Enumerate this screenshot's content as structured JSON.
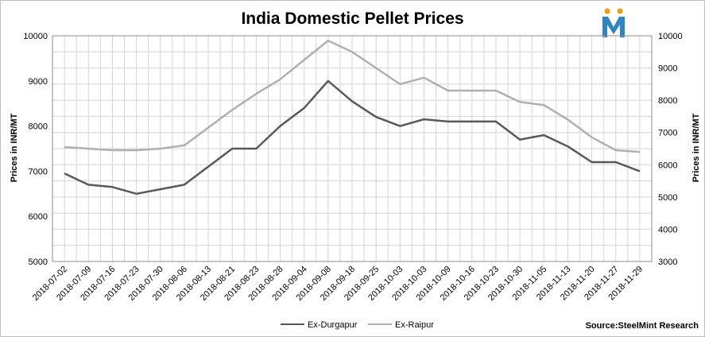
{
  "chart_data": {
    "type": "line",
    "title": "India Domestic Pellet Prices",
    "ylabel_left": "Prices in INR/MT",
    "ylabel_right": "Prices in INR/MT",
    "ylim_left": [
      5000,
      10000
    ],
    "ylim_right": [
      3000,
      10000
    ],
    "yticks_left": [
      5000,
      6000,
      7000,
      8000,
      9000,
      10000
    ],
    "yticks_right": [
      3000,
      4000,
      5000,
      6000,
      7000,
      8000,
      9000,
      10000
    ],
    "grid": true,
    "legend_position": "bottom",
    "categories": [
      "2018-07-02",
      "2018-07-09",
      "2018-07-16",
      "2018-07-23",
      "2018-07-30",
      "2018-08-06",
      "2018-08-13",
      "2018-08-21",
      "2018-08-23",
      "2018-08-28",
      "2018-09-04",
      "2018-09-08",
      "2018-09-18",
      "2018-09-25",
      "2018-10-03",
      "2018-10-03",
      "2018-10-09",
      "2018-10-16",
      "2018-10-23",
      "2018-10-30",
      "2018-11-05",
      "2018-11-13",
      "2018-11-20",
      "2018-11-27",
      "2018-11-29"
    ],
    "series": [
      {
        "name": "Ex-Durgapur",
        "axis": "left",
        "color": "#595959",
        "values": [
          6950,
          6700,
          6650,
          6500,
          6600,
          6700,
          7100,
          7500,
          7500,
          8000,
          8400,
          9000,
          8550,
          8200,
          8000,
          8150,
          8100,
          8100,
          8100,
          7700,
          7800,
          7550,
          7200,
          7200,
          7000
        ]
      },
      {
        "name": "Ex-Raipur",
        "axis": "right",
        "color": "#b0b0b0",
        "values": [
          6550,
          6500,
          6450,
          6450,
          6500,
          6600,
          7150,
          7700,
          8200,
          8650,
          9250,
          9850,
          9500,
          9000,
          8500,
          8700,
          8300,
          8300,
          8300,
          7950,
          7850,
          7400,
          6850,
          6450,
          6400
        ]
      }
    ],
    "source": "Source:SteelMint Research"
  },
  "logo": {
    "name": "steelmint-logo",
    "letter": "M",
    "primary_color": "#2e86c1",
    "accent_color": "#f39c12"
  }
}
